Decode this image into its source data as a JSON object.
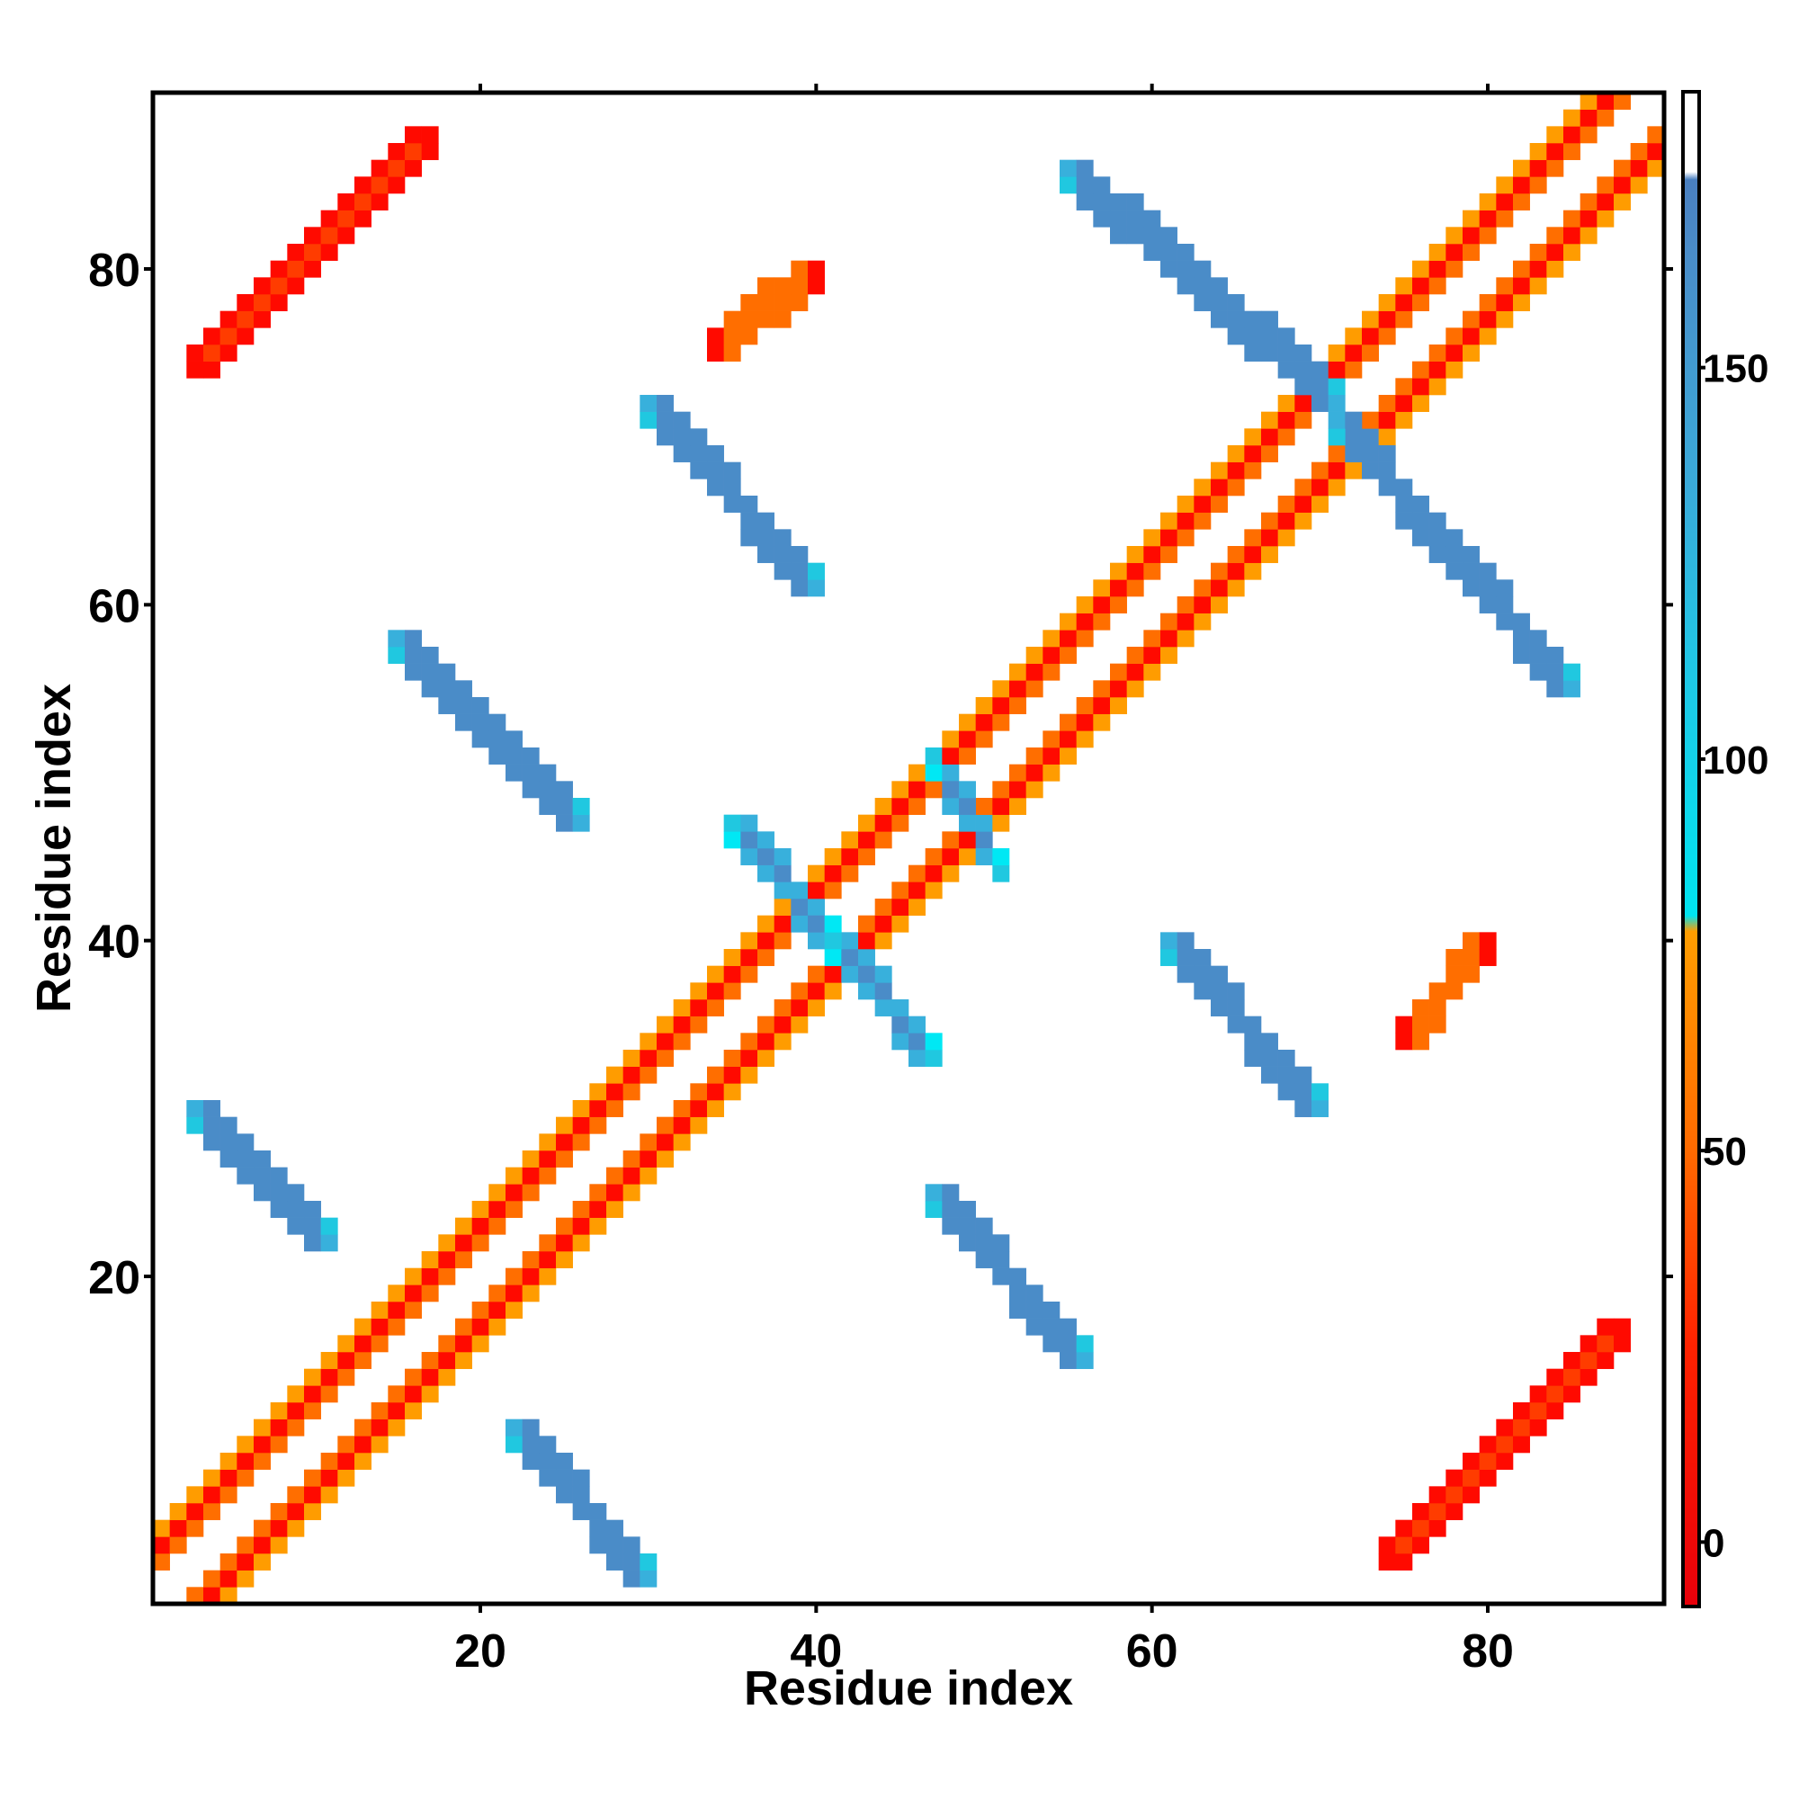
{
  "chart_data": {
    "type": "heatmap",
    "title": "",
    "xlabel": "Residue index",
    "ylabel": "Residue index",
    "xlim": [
      0.5,
      90.5
    ],
    "ylim": [
      0.5,
      90.5
    ],
    "x_ticks": [
      20,
      40,
      60,
      80
    ],
    "y_ticks": [
      20,
      40,
      60,
      80
    ],
    "grid": false,
    "symmetric": true,
    "colorbar": {
      "min": -8,
      "max": 185,
      "ticks": [
        0,
        50,
        100,
        150
      ],
      "stops": [
        {
          "value": -8,
          "color": "#e8000a"
        },
        {
          "value": 25,
          "color": "#ff2200"
        },
        {
          "value": 50,
          "color": "#ff6a00"
        },
        {
          "value": 78,
          "color": "#ff9d00"
        },
        {
          "value": 80,
          "color": "#00e4f0"
        },
        {
          "value": 110,
          "color": "#1ec8e6"
        },
        {
          "value": 135,
          "color": "#3aaad9"
        },
        {
          "value": 165,
          "color": "#4a8cc8"
        },
        {
          "value": 174,
          "color": "#4a7fc0"
        },
        {
          "value": 175,
          "color": "#ffffff"
        },
        {
          "value": 185,
          "color": "#ffffff"
        }
      ]
    },
    "palette": {
      "red": "#ff0a00",
      "red_orange": "#ff3c00",
      "orange": "#ff6e00",
      "amber": "#ff9c00",
      "cyan": "#00e8f4",
      "light_blue": "#20c8e0",
      "mid_blue": "#38b0dc",
      "steel_blue": "#4a8cc8",
      "dark_steel": "#4a78b8"
    },
    "contact_bands": [
      {
        "name": "diagonal band (helix, i/i+3)",
        "cells": "j=i+3, i=1..87",
        "value": 10
      },
      {
        "name": "diagonal band (i/i+2)",
        "cells": "j=i+2, i=1..88",
        "value": 40
      },
      {
        "name": "diagonal band (i/i+4)",
        "cells": "j=i+4, i=1..86",
        "value": 55
      },
      {
        "name": "antiparallel strand 1",
        "x_range": [
          3,
          11
        ],
        "y_range": [
          22,
          30
        ],
        "value": 165
      },
      {
        "name": "antiparallel strand 2",
        "x_range": [
          15,
          26
        ],
        "y_range": [
          47,
          58
        ],
        "value": 165
      },
      {
        "name": "antiparallel strand 3",
        "x_range": [
          22,
          30
        ],
        "y_range": [
          2,
          11
        ],
        "value": 160
      },
      {
        "name": "antiparallel strand 4",
        "x_range": [
          30,
          40
        ],
        "y_range": [
          61,
          72
        ],
        "value": 165
      },
      {
        "name": "antiparallel strand 5",
        "x_range": [
          35,
          41
        ],
        "y_range": [
          40,
          47
        ],
        "value": 150
      },
      {
        "name": "antiparallel strand 6",
        "x_range": [
          41,
          47
        ],
        "y_range": [
          33,
          40
        ],
        "value": 150
      },
      {
        "name": "antiparallel strand 7",
        "x_range": [
          47,
          56
        ],
        "y_range": [
          15,
          25
        ],
        "value": 165
      },
      {
        "name": "antiparallel strand 8",
        "x_range": [
          47,
          51
        ],
        "y_range": [
          44,
          51
        ],
        "value": 150
      },
      {
        "name": "antiparallel strand 9",
        "x_range": [
          55,
          71
        ],
        "y_range": [
          72,
          86
        ],
        "value": 165
      },
      {
        "name": "antiparallel strand 10",
        "x_range": [
          61,
          70
        ],
        "y_range": [
          30,
          40
        ],
        "value": 165
      },
      {
        "name": "antiparallel strand 11",
        "x_range": [
          71,
          85
        ],
        "y_range": [
          55,
          71
        ],
        "value": 165
      },
      {
        "name": "parallel contact 1",
        "x_range": [
          3,
          17
        ],
        "y_range": [
          74,
          88
        ],
        "value": 25
      },
      {
        "name": "parallel contact 2",
        "x_range": [
          74,
          88
        ],
        "y_range": [
          3,
          17
        ],
        "value": 25
      },
      {
        "name": "parallel contact 3",
        "x_range": [
          34,
          40
        ],
        "y_range": [
          75,
          80
        ],
        "value": 50
      },
      {
        "name": "parallel contact 4",
        "x_range": [
          75,
          80
        ],
        "y_range": [
          34,
          40
        ],
        "value": 50
      }
    ]
  }
}
